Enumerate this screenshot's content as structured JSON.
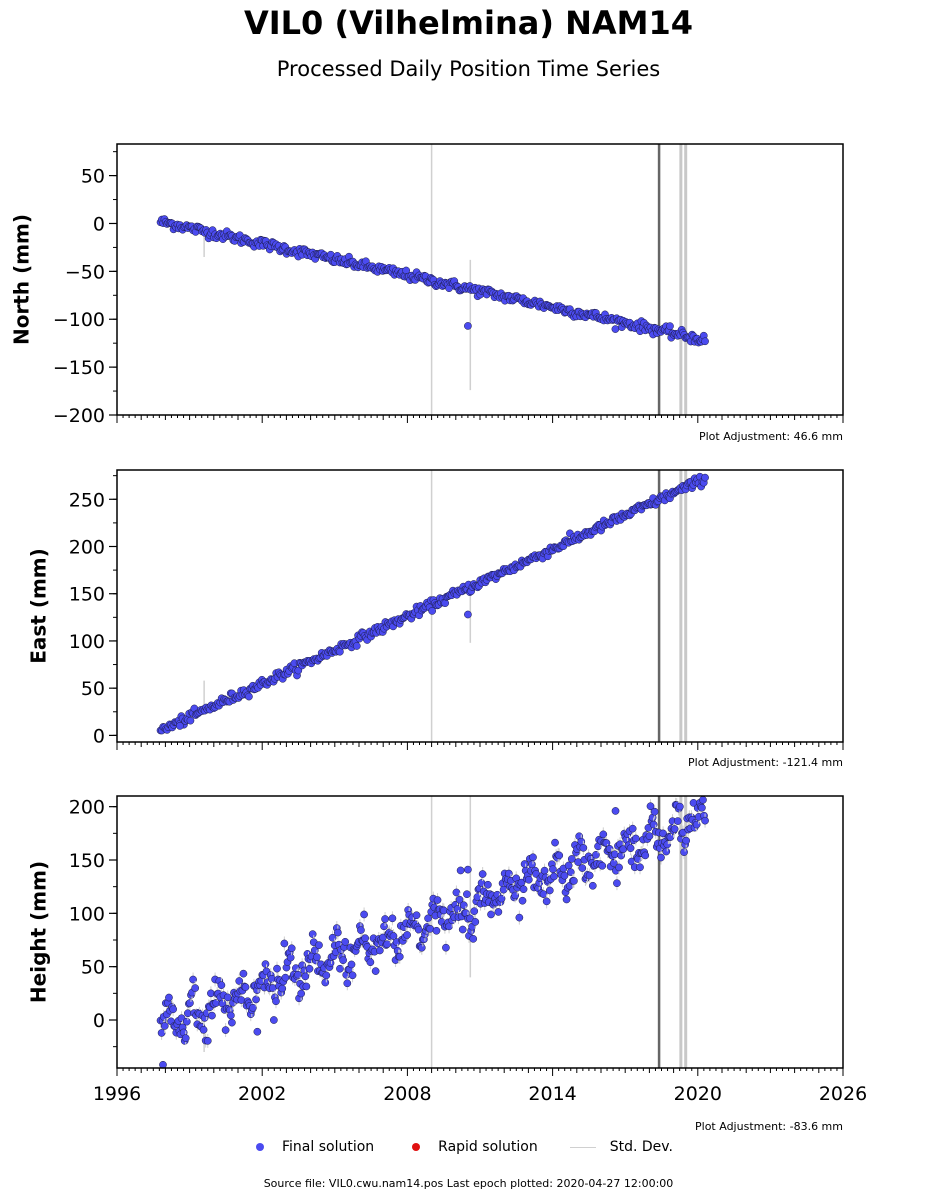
{
  "header": {
    "title": "VIL0 (Vilhelmina) NAM14",
    "subtitle": "Processed Daily Position Time Series"
  },
  "legend": {
    "final_label": "Final solution",
    "rapid_label": "Rapid solution",
    "std_label": "Std. Dev.",
    "final_color": "#4b4bf0",
    "rapid_color": "#e01010",
    "std_color": "#d0d0d0"
  },
  "footer": {
    "text": "Source file: VIL0.cwu.nam14.pos  Last epoch plotted: 2020-04-27 12:00:00"
  },
  "chart_data": [
    {
      "type": "scatter",
      "name": "north",
      "ylabel": "North (mm)",
      "adjustment": "Plot Adjustment: 46.6 mm",
      "xlim": [
        1996,
        2026
      ],
      "ylim": [
        -200,
        83
      ],
      "yticks": [
        50,
        0,
        -50,
        -100,
        -150,
        -200
      ],
      "ytick_labels": [
        "50",
        "0",
        "−50",
        "−100",
        "−150",
        "−200"
      ],
      "trend": [
        [
          1997.8,
          2
        ],
        [
          2020.3,
          -122
        ]
      ],
      "scatter_sd": 2.5,
      "outliers": [
        [
          2010.5,
          -107
        ]
      ],
      "std_dev_bars": [
        [
          2009.0,
          -200,
          83
        ],
        [
          2010.6,
          -174,
          -38
        ],
        [
          1999.6,
          -35,
          -5
        ]
      ],
      "equipment_change_lines": [
        2018.4,
        2019.3,
        2019.5
      ]
    },
    {
      "type": "scatter",
      "name": "east",
      "ylabel": "East (mm)",
      "adjustment": "Plot Adjustment: -121.4 mm",
      "xlim": [
        1996,
        2026
      ],
      "ylim": [
        -7,
        281
      ],
      "yticks": [
        0,
        50,
        100,
        150,
        200,
        250
      ],
      "ytick_labels": [
        "0",
        "50",
        "100",
        "150",
        "200",
        "250"
      ],
      "trend": [
        [
          1997.8,
          5
        ],
        [
          2020.3,
          272
        ]
      ],
      "scatter_sd": 2.5,
      "outliers": [
        [
          2010.5,
          128
        ],
        [
          1998.6,
          10
        ]
      ],
      "std_dev_bars": [
        [
          2009.0,
          -7,
          281
        ],
        [
          2010.6,
          98,
          158
        ],
        [
          1999.6,
          25,
          58
        ]
      ],
      "equipment_change_lines": [
        2018.4,
        2019.3,
        2019.5
      ]
    },
    {
      "type": "scatter",
      "name": "height",
      "ylabel": "Height (mm)",
      "adjustment": "Plot Adjustment: -83.6 mm",
      "xlim": [
        1996,
        2026
      ],
      "ylim": [
        -45,
        210
      ],
      "yticks": [
        0,
        50,
        100,
        150,
        200
      ],
      "ytick_labels": [
        "0",
        "50",
        "100",
        "150",
        "200"
      ],
      "xticks": [
        1996,
        2002,
        2008,
        2014,
        2020,
        2026
      ],
      "xtick_labels": [
        "1996",
        "2002",
        "2008",
        "2014",
        "2020",
        "2026"
      ],
      "trend": [
        [
          1997.8,
          -5
        ],
        [
          2020.3,
          190
        ]
      ],
      "scatter_sd": 9,
      "outliers": [
        [
          2010.5,
          141
        ],
        [
          2016.6,
          196
        ],
        [
          1997.9,
          -42
        ],
        [
          2001.8,
          -11
        ]
      ],
      "std_dev_bars": [
        [
          2009.0,
          -45,
          210
        ],
        [
          2010.6,
          40,
          210
        ],
        [
          1999.6,
          -30,
          0
        ]
      ],
      "equipment_change_lines": [
        2018.4,
        2019.3,
        2019.5
      ]
    }
  ]
}
